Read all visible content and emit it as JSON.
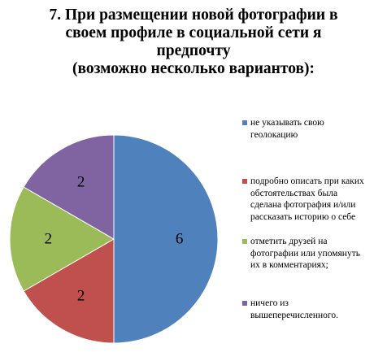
{
  "chart_data": {
    "type": "pie",
    "title_lines": [
      "7. При размещении новой фотографии в",
      "своем профиле в социальной сети я",
      "предпочту",
      "(возможно несколько вариантов):"
    ],
    "categories": [
      "не указывать свою геолокацию",
      "подробно описать при каких обстоятельствах была сделана фотография и/или рассказать историю о себе",
      "отметить друзей на фотографии или упомянуть их в комментариях;",
      "ничего из вышеперечисленного."
    ],
    "legend_lines": [
      [
        "не указывать свою",
        "геолокацию"
      ],
      [
        "подробно описать при каких",
        "обстоятельствах была",
        "сделана фотография и/или",
        "рассказать историю о себе"
      ],
      [
        "отметить друзей на",
        "фотографии или упомянуть",
        "их в комментариях;"
      ],
      [
        "ничего из",
        "вышеперечисленного."
      ]
    ],
    "values": [
      6,
      2,
      2,
      2
    ],
    "data_labels": [
      "6",
      "2",
      "2",
      "2"
    ],
    "colors": [
      "#4f81bd",
      "#c0504d",
      "#9bbb59",
      "#8064a2"
    ],
    "legend_position": "right"
  }
}
